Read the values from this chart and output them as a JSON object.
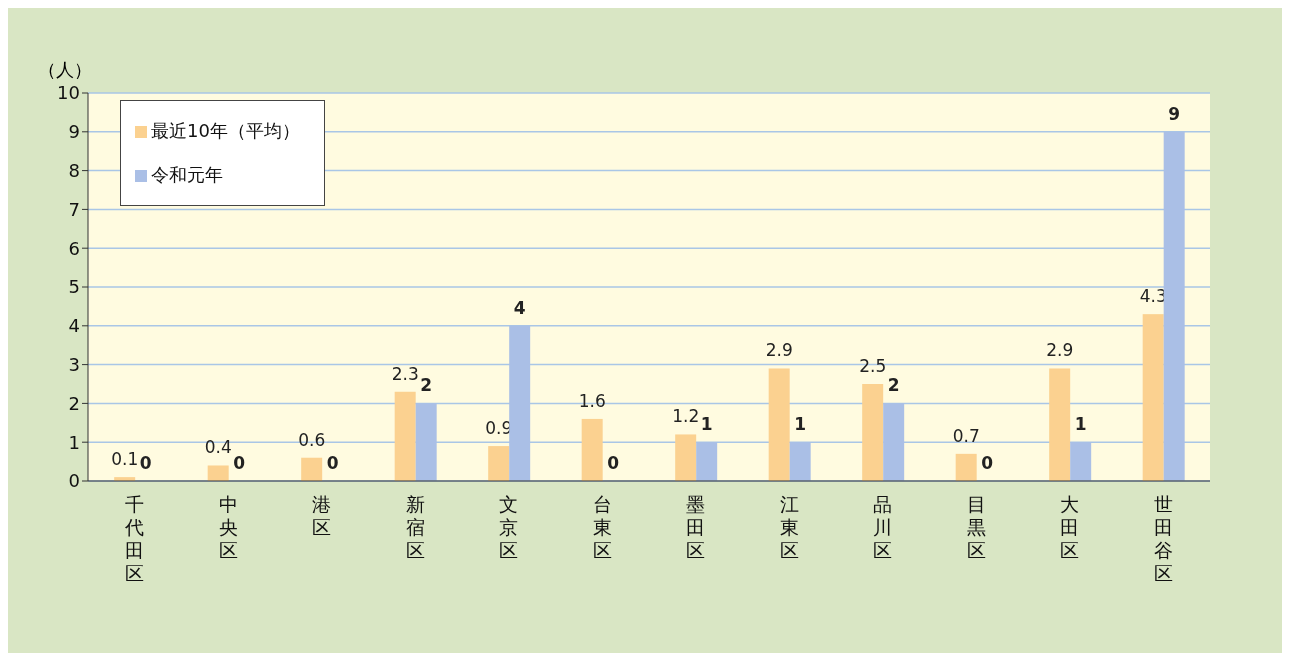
{
  "chart_data": {
    "type": "bar",
    "ylabel": "（人）",
    "categories": [
      "千代田区",
      "中央区",
      "港区",
      "新宿区",
      "文京区",
      "台東区",
      "墨田区",
      "江東区",
      "品川区",
      "目黒区",
      "大田区",
      "世田谷区"
    ],
    "series": [
      {
        "name": "最近10年（平均）",
        "color": "#fbd190",
        "values": [
          0.1,
          0.4,
          0.6,
          2.3,
          0.9,
          1.6,
          1.2,
          2.9,
          2.5,
          0.7,
          2.9,
          4.3
        ]
      },
      {
        "name": "令和元年",
        "color": "#aabfe6",
        "values": [
          0,
          0,
          0,
          2,
          4,
          0,
          1,
          1,
          2,
          0,
          1,
          9
        ]
      }
    ],
    "ylim": [
      0,
      10
    ],
    "yticks": [
      0,
      1,
      2,
      3,
      4,
      5,
      6,
      7,
      8,
      9,
      10
    ],
    "grid": "y",
    "legend": "top left",
    "data_labels": true
  }
}
